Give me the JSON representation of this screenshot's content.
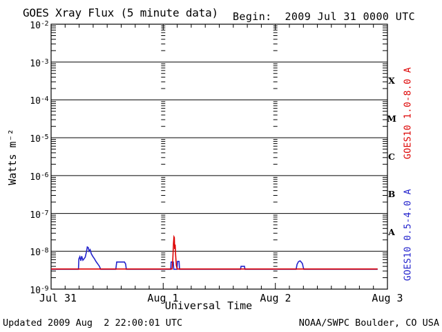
{
  "header": {
    "title": "GOES Xray Flux (5 minute data)",
    "begin_label": "Begin:  2009 Jul 31 0000 UTC"
  },
  "footer": {
    "updated": "Updated 2009 Aug  2 22:00:01 UTC",
    "credit": "NOAA/SWPC Boulder, CO USA"
  },
  "side_labels": {
    "long": "GOES10 1.0-8.0 A",
    "short": "GOES10 0.5-4.0 A"
  },
  "colors": {
    "long_channel": "#dd0000",
    "short_channel": "#2222cc",
    "axis": "#000000",
    "background": "#ffffff"
  },
  "chart_data": {
    "type": "line",
    "title": "GOES Xray Flux (5 minute data)",
    "xlabel": "Universal Time",
    "ylabel": "Watts m⁻²",
    "x_axis": {
      "start_label": "2009 Jul 31 0000 UTC",
      "range_hours": [
        0,
        72
      ],
      "day_tick_hours": [
        0,
        24,
        48,
        72
      ],
      "day_labels": [
        "Jul 31",
        "Aug 1",
        "Aug 2",
        "Aug 3"
      ],
      "minor_tick_hours": 3,
      "day_gridlines_hours": [
        24,
        48
      ]
    },
    "y_axis": {
      "scale": "log",
      "range": [
        1e-09,
        0.01
      ],
      "decade_exponents": [
        -2,
        -3,
        -4,
        -5,
        -6,
        -7,
        -8,
        -9
      ],
      "gridline_exponents": [
        -3,
        -4,
        -5,
        -6,
        -7,
        -8
      ],
      "unit": "Watts m^-2"
    },
    "flare_classes": [
      {
        "label": "X",
        "band_exponents": [
          -4,
          -3
        ]
      },
      {
        "label": "M",
        "band_exponents": [
          -5,
          -4
        ]
      },
      {
        "label": "C",
        "band_exponents": [
          -6,
          -5
        ]
      },
      {
        "label": "B",
        "band_exponents": [
          -7,
          -6
        ]
      },
      {
        "label": "A",
        "band_exponents": [
          -8,
          -7
        ]
      }
    ],
    "legend_position": "right-rotated",
    "grid": "decade-horizontal-solid, day-vertical-dotted",
    "series": [
      {
        "name": "GOES10 0.5-4.0 A",
        "color_key": "short_channel",
        "points_hours_wm2": [
          [
            0,
            3.35e-09
          ],
          [
            5.85,
            3.35e-09
          ],
          [
            5.95,
            6.3e-09
          ],
          [
            6.15,
            7.2e-09
          ],
          [
            6.35,
            5.6e-09
          ],
          [
            6.55,
            7.4e-09
          ],
          [
            6.8,
            5.8e-09
          ],
          [
            7.0,
            6.2e-09
          ],
          [
            7.3,
            7e-09
          ],
          [
            7.55,
            9.5e-09
          ],
          [
            7.75,
            1.3e-08
          ],
          [
            7.95,
            1.25e-08
          ],
          [
            8.15,
            1e-08
          ],
          [
            8.35,
            1.1e-08
          ],
          [
            8.6,
            8.6e-09
          ],
          [
            8.9,
            7.4e-09
          ],
          [
            9.25,
            6.4e-09
          ],
          [
            9.6,
            5.4e-09
          ],
          [
            10.0,
            4.6e-09
          ],
          [
            10.35,
            4e-09
          ],
          [
            10.6,
            3.35e-09
          ],
          [
            13.85,
            3.35e-09
          ],
          [
            14.05,
            5.2e-09
          ],
          [
            15.7,
            5.2e-09
          ],
          [
            15.95,
            4.6e-09
          ],
          [
            16.1,
            3.35e-09
          ],
          [
            25.6,
            3.35e-09
          ],
          [
            25.7,
            5.2e-09
          ],
          [
            26.15,
            5.2e-09
          ],
          [
            26.25,
            3.35e-09
          ],
          [
            26.95,
            3.35e-09
          ],
          [
            27.05,
            5.4e-09
          ],
          [
            27.4,
            5.4e-09
          ],
          [
            27.5,
            3.35e-09
          ],
          [
            40.55,
            3.35e-09
          ],
          [
            40.65,
            4e-09
          ],
          [
            41.4,
            4e-09
          ],
          [
            41.5,
            3.35e-09
          ],
          [
            52.45,
            3.35e-09
          ],
          [
            52.65,
            4.5e-09
          ],
          [
            52.95,
            5.3e-09
          ],
          [
            53.3,
            5.6e-09
          ],
          [
            53.6,
            5.1e-09
          ],
          [
            53.8,
            4.7e-09
          ],
          [
            53.95,
            3.9e-09
          ],
          [
            54.1,
            3.35e-09
          ],
          [
            69.9,
            3.35e-09
          ]
        ]
      },
      {
        "name": "GOES10 1.0-8.0 A",
        "color_key": "long_channel",
        "points_hours_wm2": [
          [
            0,
            3.4e-09
          ],
          [
            25.9,
            3.4e-09
          ],
          [
            26.05,
            6e-09
          ],
          [
            26.2,
            1.6e-08
          ],
          [
            26.3,
            2.4e-08
          ],
          [
            26.38,
            2.3e-08
          ],
          [
            26.45,
            1.15e-08
          ],
          [
            26.55,
            1.5e-08
          ],
          [
            26.65,
            8e-09
          ],
          [
            26.8,
            4.2e-09
          ],
          [
            27.0,
            3.4e-09
          ],
          [
            69.9,
            3.4e-09
          ]
        ]
      }
    ]
  }
}
